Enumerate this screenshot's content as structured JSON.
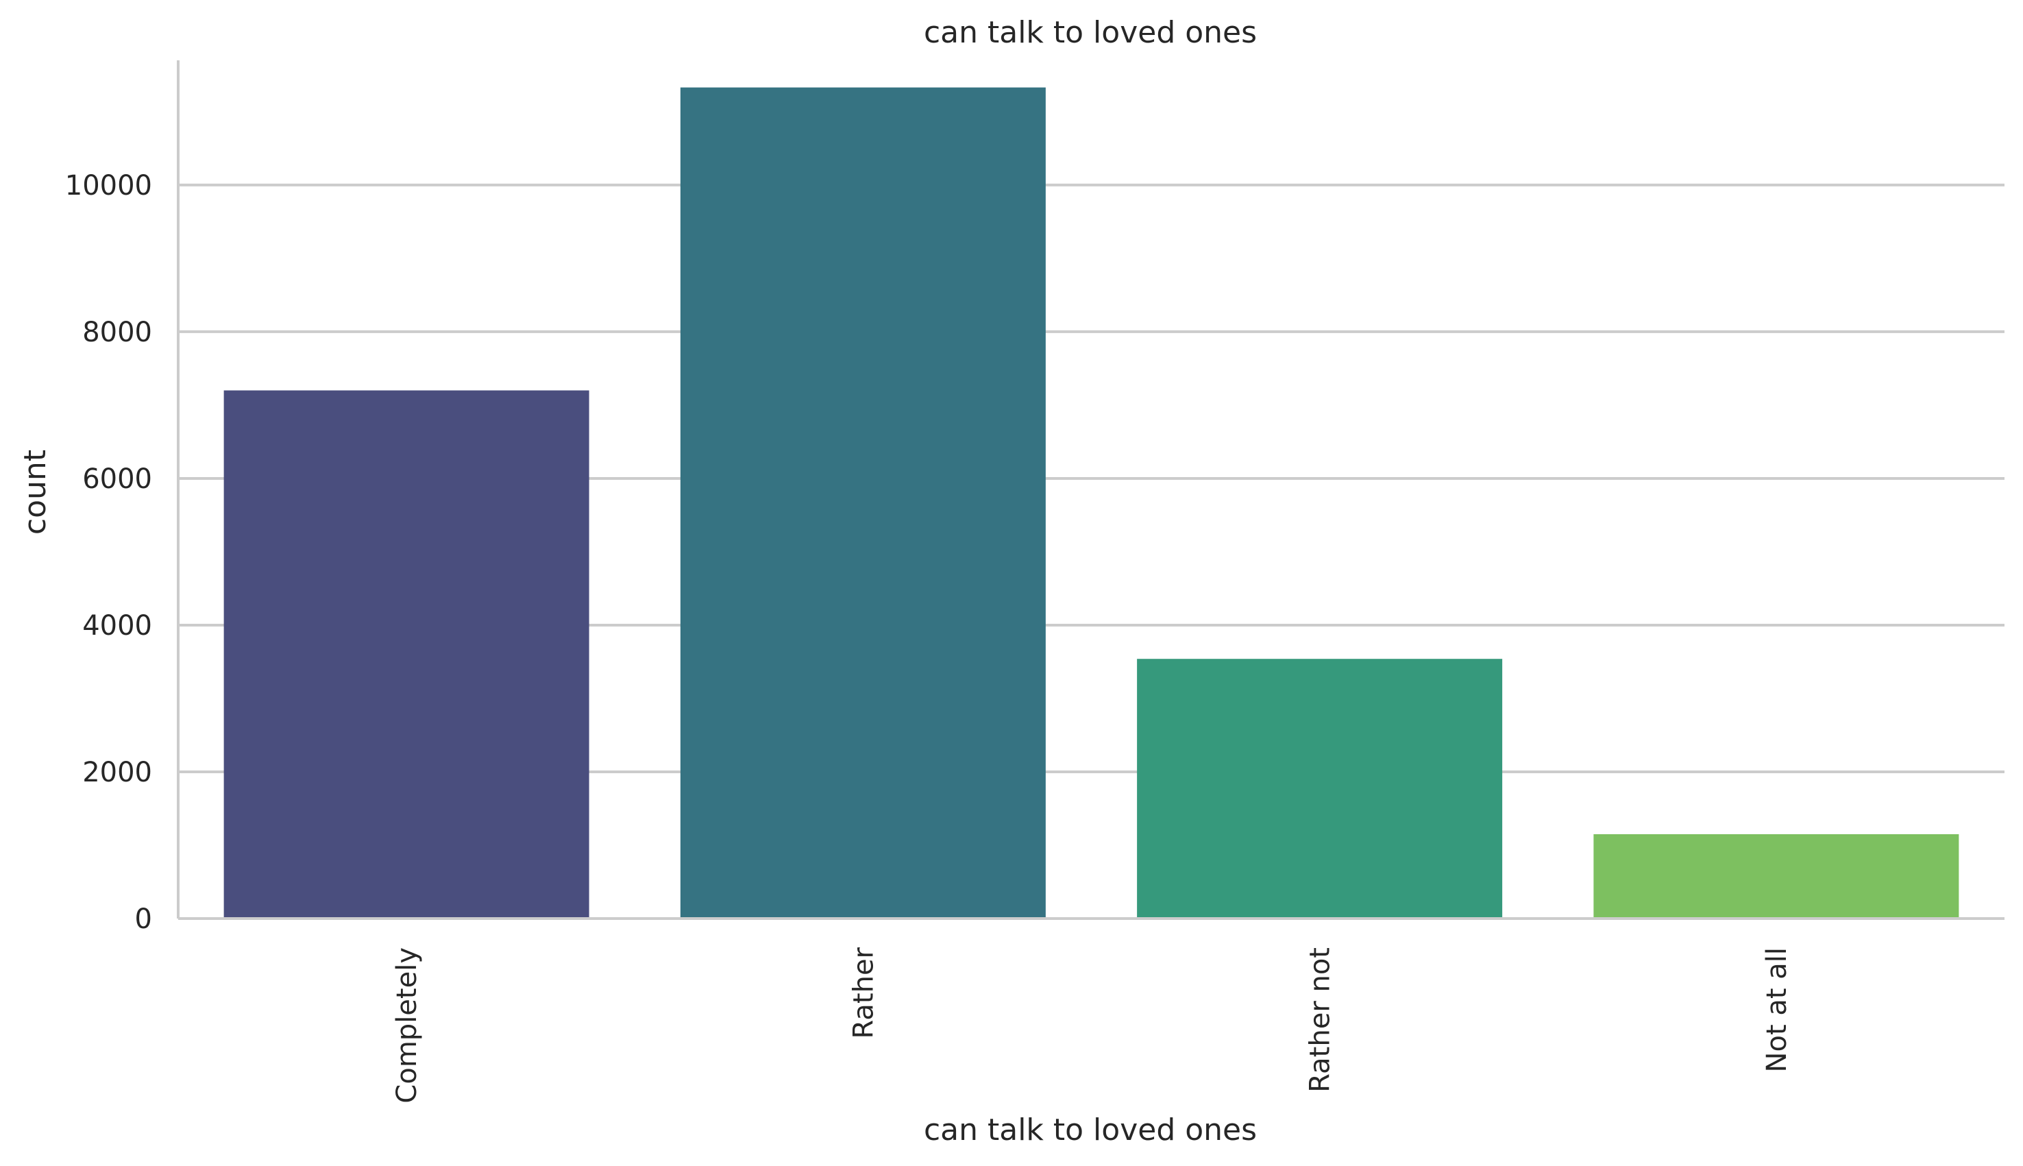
{
  "chart_data": {
    "type": "bar",
    "title": "can talk to loved ones",
    "xlabel": "can talk to loved ones",
    "ylabel": "count",
    "categories": [
      "Completely",
      "Rather",
      "Rather not",
      "Not at all"
    ],
    "values": [
      7200,
      11330,
      3540,
      1150
    ],
    "colors": [
      "#4a4e7e",
      "#367382",
      "#36997c",
      "#7dc060"
    ],
    "ylim": [
      0,
      11700
    ],
    "yticks": [
      0,
      2000,
      4000,
      6000,
      8000,
      10000
    ],
    "ytick_labels": [
      "0",
      "2000",
      "4000",
      "6000",
      "8000",
      "10000"
    ],
    "grid": "horizontal",
    "legend": "none",
    "xtick_rotation": "vertical"
  }
}
